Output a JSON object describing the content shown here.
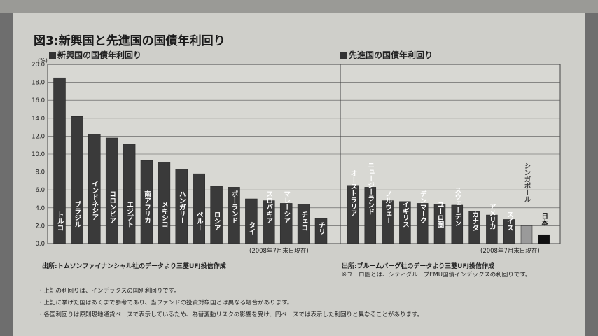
{
  "title": "図3:新興国と先進国の国債年利回り",
  "chart_data": [
    {
      "type": "bar",
      "title": "新興国の国債年利回り",
      "ylabel": "(%)",
      "ylim": [
        0,
        20
      ],
      "yticks": [
        "0.0",
        "2.0",
        "4.0",
        "6.0",
        "8.0",
        "10.0",
        "12.0",
        "14.0",
        "16.0",
        "18.0",
        "20.0"
      ],
      "categories": [
        "トルコ",
        "ブラジル",
        "インドネシア",
        "コロンビア",
        "エジプト",
        "南アフリカ",
        "メキシコ",
        "ハンガリー",
        "ペルー",
        "ロシア",
        "ポーランド",
        "タイ",
        "スロバキア",
        "マレーシア",
        "チェコ",
        "チリ"
      ],
      "values": [
        18.5,
        14.2,
        12.2,
        11.8,
        11.1,
        9.3,
        9.1,
        8.3,
        7.8,
        6.4,
        6.3,
        5.0,
        4.8,
        4.5,
        4.4,
        2.8
      ],
      "as_of": "(2008年7月末日現在)",
      "source": "出所:トムソンファイナンシャル社のデータより三菱UFJ投信作成",
      "color": "#3a3a3a"
    },
    {
      "type": "bar",
      "title": "先進国の国債年利回り",
      "ylim": [
        0,
        20
      ],
      "categories": [
        "オーストラリア",
        "ニュージーランド",
        "ノルウェー",
        "イギリス",
        "デンマーク",
        "ユーロ圏",
        "スウェーデン",
        "カナダ",
        "アメリカ",
        "スイス",
        "シンガポール",
        "日本"
      ],
      "values": [
        6.5,
        6.3,
        4.8,
        4.7,
        4.5,
        4.4,
        4.3,
        3.6,
        3.2,
        2.7,
        2.0,
        1.0
      ],
      "as_of": "(2008年7月末日現在)",
      "source": "出所:ブルームバーグ社のデータより三菱UFJ投信作成",
      "source_note": "※ユーロ圏とは、シティグループEMU国債インデックスの利回りです。",
      "color": "#3a3a3a"
    }
  ],
  "footnotes": [
    "・上記の利回りは、インデックスの国別利回りです。",
    "・上記に挙げた国はあくまで参考であり、当ファンドの投資対象国とは異なる場合があります。",
    "・各国利回りは原則現地通貨ベースで表示しているため、為替変動リスクの影響を受け、円ベースでは表示した利回りと異なることがあります。"
  ]
}
